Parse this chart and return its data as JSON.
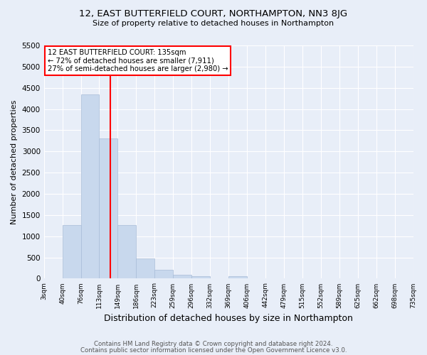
{
  "title": "12, EAST BUTTERFIELD COURT, NORTHAMPTON, NN3 8JG",
  "subtitle": "Size of property relative to detached houses in Northampton",
  "xlabel": "Distribution of detached houses by size in Northampton",
  "ylabel": "Number of detached properties",
  "bin_labels": [
    "3sqm",
    "40sqm",
    "76sqm",
    "113sqm",
    "149sqm",
    "186sqm",
    "223sqm",
    "259sqm",
    "296sqm",
    "332sqm",
    "369sqm",
    "406sqm",
    "442sqm",
    "479sqm",
    "515sqm",
    "552sqm",
    "589sqm",
    "625sqm",
    "662sqm",
    "698sqm",
    "735sqm"
  ],
  "bar_values": [
    0,
    1270,
    4350,
    3300,
    1270,
    480,
    210,
    90,
    60,
    0,
    60,
    0,
    0,
    0,
    0,
    0,
    0,
    0,
    0,
    0
  ],
  "bar_color": "#c8d8ed",
  "bar_edgecolor": "#a8bcd8",
  "vline_index": 3.6,
  "annotation_text": "12 EAST BUTTERFIELD COURT: 135sqm\n← 72% of detached houses are smaller (7,911)\n27% of semi-detached houses are larger (2,980) →",
  "annotation_box_color": "white",
  "annotation_box_edgecolor": "red",
  "vline_color": "red",
  "ylim": [
    0,
    5500
  ],
  "yticks": [
    0,
    500,
    1000,
    1500,
    2000,
    2500,
    3000,
    3500,
    4000,
    4500,
    5000,
    5500
  ],
  "footer1": "Contains HM Land Registry data © Crown copyright and database right 2024.",
  "footer2": "Contains public sector information licensed under the Open Government Licence v3.0.",
  "bg_color": "#e8eef8",
  "plot_bg_color": "#e8eef8",
  "title_fontsize": 9.5,
  "subtitle_fontsize": 8,
  "ylabel_fontsize": 8,
  "xlabel_fontsize": 9
}
